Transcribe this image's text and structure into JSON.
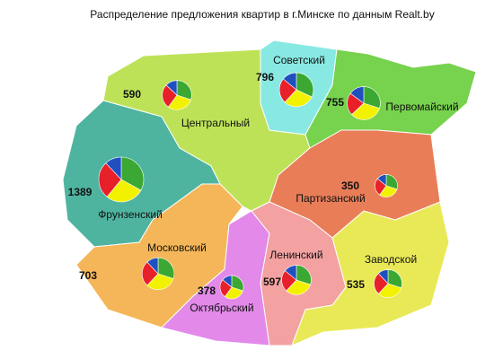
{
  "title": "Распределение предложения квартир в г.Минске по данным  Realt.by",
  "slice_colors": [
    "#3aa832",
    "#f2f200",
    "#e8202a",
    "#2050c0"
  ],
  "districts": [
    {
      "name": "Центральный",
      "count": 590,
      "shares": [
        30,
        30,
        27,
        13
      ]
    },
    {
      "name": "Советский",
      "count": 796,
      "shares": [
        32,
        30,
        24,
        14
      ]
    },
    {
      "name": "Первомайский",
      "count": 755,
      "shares": [
        30,
        33,
        22,
        15
      ]
    },
    {
      "name": "Фрунзенский",
      "count": 1389,
      "shares": [
        33,
        28,
        27,
        12
      ]
    },
    {
      "name": "Партизанский",
      "count": 350,
      "shares": [
        30,
        30,
        26,
        14
      ]
    },
    {
      "name": "Московский",
      "count": 703,
      "shares": [
        30,
        32,
        26,
        12
      ]
    },
    {
      "name": "Октябрьский",
      "count": 378,
      "shares": [
        30,
        30,
        26,
        14
      ]
    },
    {
      "name": "Ленинский",
      "count": 597,
      "shares": [
        30,
        32,
        24,
        14
      ]
    },
    {
      "name": "Заводской",
      "count": 535,
      "shares": [
        30,
        32,
        26,
        12
      ]
    }
  ]
}
